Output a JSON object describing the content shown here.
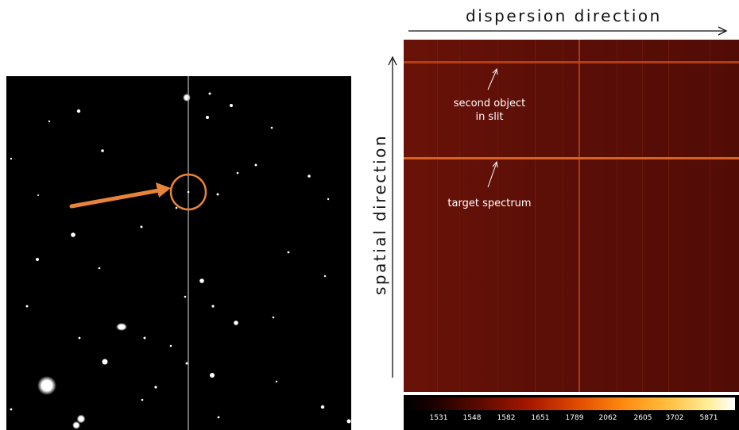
{
  "labels": {
    "dispersion": "dispersion  direction",
    "spatial": "spatial  direction"
  },
  "annotations": {
    "second_object_line1": "second object",
    "second_object_line2": "in slit",
    "target": "target spectrum"
  },
  "colorbar": {
    "ticks": [
      "1531",
      "1548",
      "1582",
      "1651",
      "1789",
      "2062",
      "2605",
      "3702",
      "5871"
    ]
  },
  "colors": {
    "arrow_highlight": "#e8843a",
    "spectrum_background": "#5a0e08",
    "spectrum_trace": "#d9621a"
  }
}
